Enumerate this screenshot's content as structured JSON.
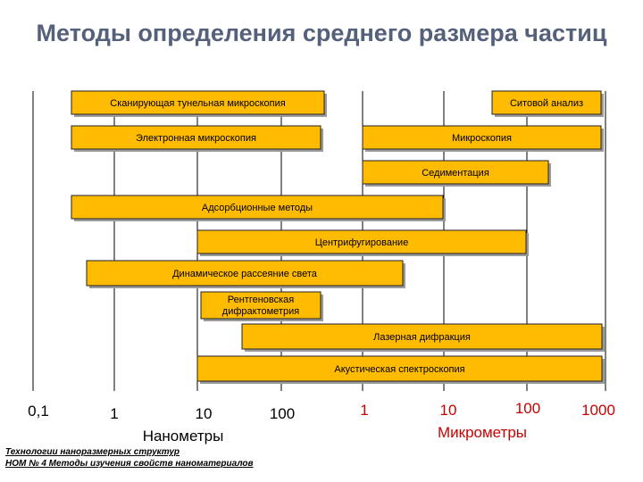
{
  "title": "Методы определения среднего размера частиц",
  "bars": [
    {
      "label": "Сканирующая тунельная микроскопия"
    },
    {
      "label": "Ситовой анализ"
    },
    {
      "label": "Электронная микроскопия"
    },
    {
      "label": "Микроскопия"
    },
    {
      "label": "Седиментация"
    },
    {
      "label": "Адсорбционные методы"
    },
    {
      "label": "Центрифугирование"
    },
    {
      "label": "Динамическое рассеяние света"
    },
    {
      "label": "Рентгеновская дифрактометрия"
    },
    {
      "label": "Лазерная дифракция"
    },
    {
      "label": "Акустическая спектроскопия"
    }
  ],
  "axis": {
    "ticks": [
      {
        "label": "0,1",
        "group": "nano"
      },
      {
        "label": "1",
        "group": "nano"
      },
      {
        "label": "10",
        "group": "nano"
      },
      {
        "label": "100",
        "group": "nano"
      },
      {
        "label": "1",
        "group": "micro"
      },
      {
        "label": "10",
        "group": "micro"
      },
      {
        "label": "100",
        "group": "micro"
      },
      {
        "label": "1000",
        "group": "micro"
      }
    ],
    "nano_unit": "Нанометры",
    "micro_unit": "Микрометры"
  },
  "colors": {
    "bar_fill": "#ffbb00",
    "micro_text": "#cc0000",
    "title": "#55607a"
  },
  "footer": {
    "line1": "Технологии наноразмерных структур",
    "line2": "НОМ № 4 Методы изучения свойств наноматериалов"
  }
}
